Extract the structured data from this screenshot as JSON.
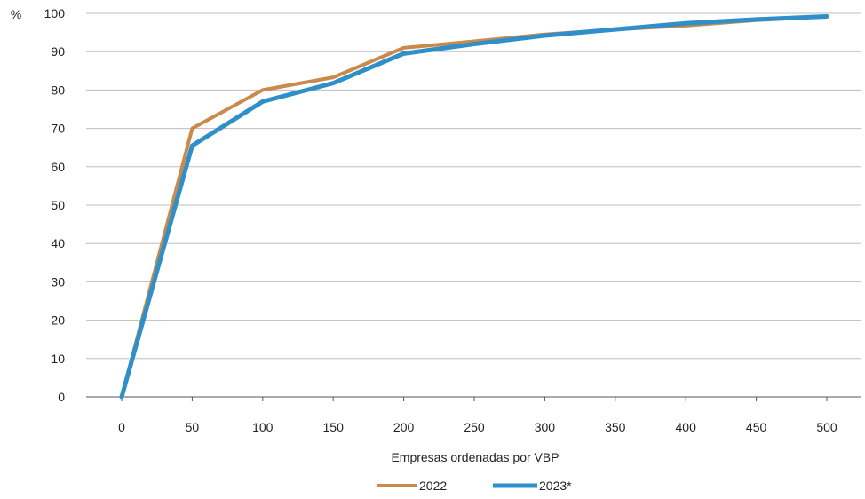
{
  "chart_data": {
    "type": "line",
    "title": "",
    "xlabel": "Empresas ordenadas por VBP",
    "ylabel": "%",
    "x": [
      0,
      50,
      100,
      150,
      200,
      250,
      300,
      350,
      400,
      450,
      500
    ],
    "xlim": [
      0,
      500
    ],
    "ylim": [
      0,
      100
    ],
    "x_ticks": [
      "0",
      "50",
      "100",
      "150",
      "200",
      "250",
      "300",
      "350",
      "400",
      "450",
      "500"
    ],
    "y_ticks": [
      "0",
      "10",
      "20",
      "30",
      "40",
      "50",
      "60",
      "70",
      "80",
      "90",
      "100"
    ],
    "grid": "horizontal",
    "legend": "bottom-center",
    "series": [
      {
        "name": "2022",
        "color": "#C98A4B",
        "values": [
          0,
          70,
          80,
          83.3,
          91,
          92.7,
          94.5,
          95.8,
          96.8,
          98.2,
          99.2
        ]
      },
      {
        "name": "2023*",
        "color": "#2E8FC9",
        "values": [
          0,
          65.5,
          77,
          81.8,
          89.5,
          92,
          94.2,
          95.8,
          97.4,
          98.4,
          99.2
        ]
      }
    ]
  }
}
